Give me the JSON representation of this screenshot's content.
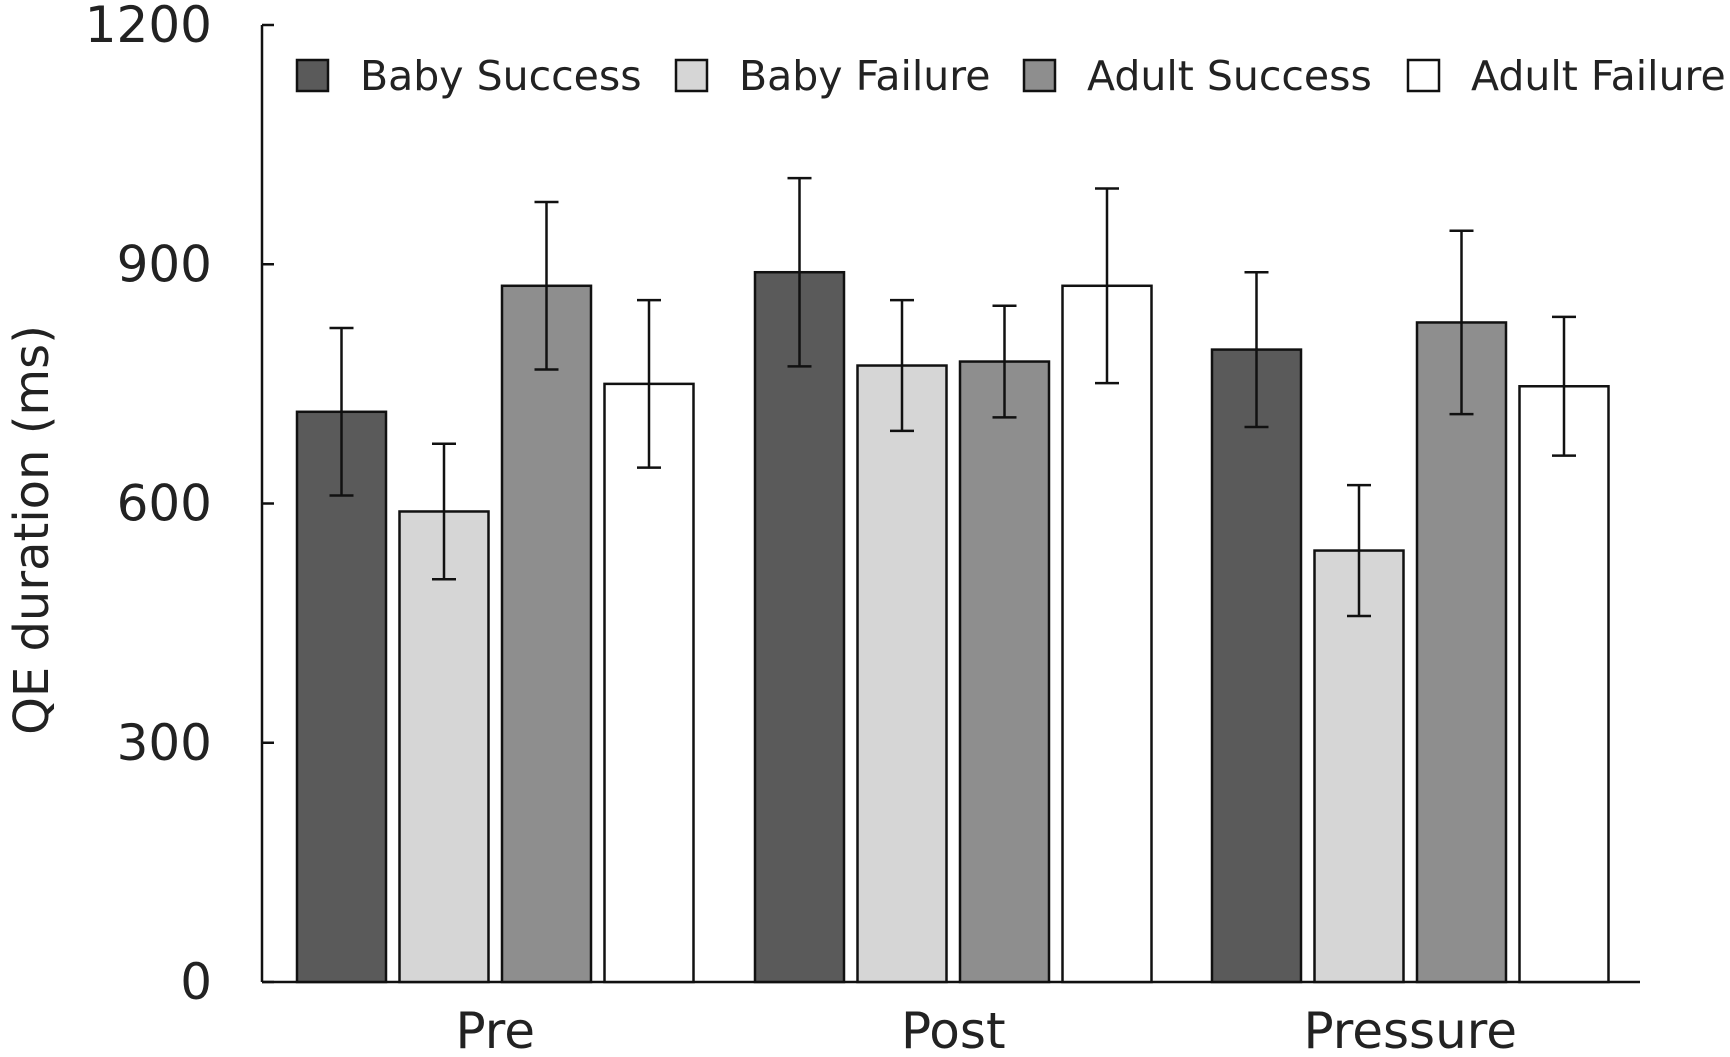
{
  "chart_data": {
    "type": "bar",
    "title": "",
    "xlabel": "",
    "ylabel": "QE duration (ms)",
    "ylim": [
      0,
      1200
    ],
    "yticks": [
      0,
      300,
      600,
      900,
      1200
    ],
    "categories": [
      "Pre",
      "Post",
      "Pressure"
    ],
    "legend_position": "top",
    "series": [
      {
        "name": "Baby Success",
        "color": "#5a5a5a",
        "values": [
          715,
          890,
          793
        ],
        "errors": [
          105,
          118,
          97
        ]
      },
      {
        "name": "Baby Failure",
        "color": "#d6d6d6",
        "values": [
          590,
          773,
          541
        ],
        "errors": [
          85,
          82,
          82
        ]
      },
      {
        "name": "Adult Success",
        "color": "#8e8e8e",
        "values": [
          873,
          778,
          827
        ],
        "errors": [
          105,
          70,
          115
        ]
      },
      {
        "name": "Adult Failure",
        "color": "#ffffff",
        "values": [
          750,
          873,
          747
        ],
        "errors": [
          105,
          122,
          87
        ]
      }
    ]
  }
}
